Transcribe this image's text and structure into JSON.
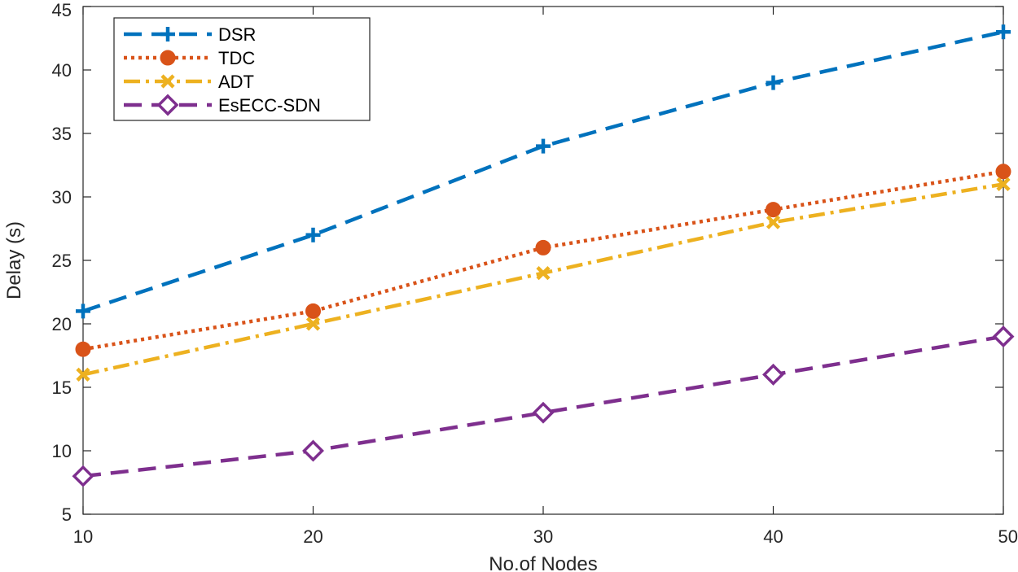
{
  "chart_data": {
    "type": "line",
    "xlabel": "No.of Nodes",
    "ylabel": "Delay (s)",
    "x": [
      10,
      20,
      30,
      40,
      50
    ],
    "xlim": [
      10,
      50
    ],
    "ylim": [
      5,
      45
    ],
    "xticks": [
      "10",
      "20",
      "30",
      "40",
      "50"
    ],
    "yticks": [
      "5",
      "10",
      "15",
      "20",
      "25",
      "30",
      "35",
      "40",
      "45"
    ],
    "grid": false,
    "legend_position": "top-left",
    "series": [
      {
        "name": "DSR",
        "values": [
          21,
          27,
          34,
          39,
          43
        ],
        "color": "#0072BD",
        "marker": "plus",
        "line": "dashed"
      },
      {
        "name": "TDC",
        "values": [
          18,
          21,
          26,
          29,
          32
        ],
        "color": "#D95319",
        "marker": "filled-circle",
        "line": "dotted"
      },
      {
        "name": "ADT",
        "values": [
          16,
          20,
          24,
          28,
          31
        ],
        "color": "#EDB120",
        "marker": "x",
        "line": "dash-dot"
      },
      {
        "name": "EsECC-SDN",
        "values": [
          8,
          10,
          13,
          16,
          19
        ],
        "color": "#7E2F8E",
        "marker": "diamond",
        "line": "dashed"
      }
    ]
  }
}
